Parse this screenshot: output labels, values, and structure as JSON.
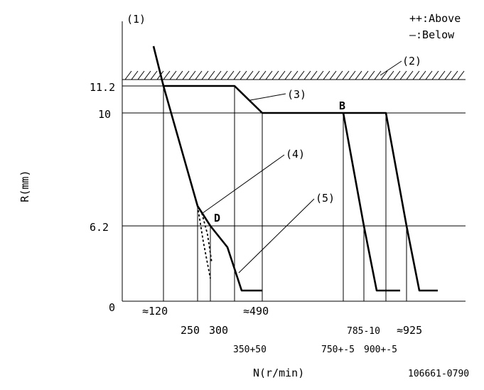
{
  "chart_data": {
    "type": "line",
    "title": "",
    "xlabel": "N(r/min)",
    "ylabel": "R(mm)",
    "y_ticks": [
      "11.2",
      "10",
      "6.2",
      "0"
    ],
    "x_tick_labels": [
      "≈120",
      "250",
      "300",
      "≈490",
      "350+50",
      "750+-5",
      "785-10",
      "900+-5",
      "≈925"
    ],
    "legend": [
      "++:Above",
      "—:Below"
    ],
    "callouts": [
      "(1)",
      "(2)",
      "(3)",
      "(4)",
      "(5)"
    ],
    "points": [
      "B",
      "D"
    ],
    "figure_id": "106661-0790",
    "series": [
      {
        "values_note": "",
        "x": [
          90,
          120,
          180,
          248,
          278,
          310,
          330
        ],
        "y": [
          12.8,
          11.2,
          11.2,
          7.0,
          6.2,
          4.0,
          1.0
        ]
      }
    ],
    "ylim": [
      0,
      14
    ]
  }
}
